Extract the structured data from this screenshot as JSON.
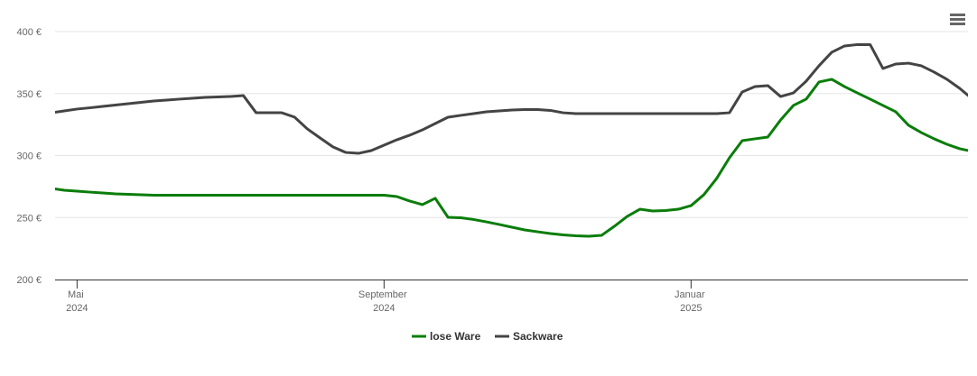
{
  "chart_data": {
    "type": "line",
    "categories": [
      null,
      null,
      "Mai 2024",
      null,
      null,
      null,
      null,
      null,
      null,
      null,
      null,
      null,
      null,
      null,
      null,
      null,
      null,
      null,
      null,
      null,
      null,
      null,
      null,
      null,
      null,
      null,
      "September 2024",
      null,
      null,
      null,
      null,
      null,
      null,
      null,
      null,
      null,
      null,
      null,
      null,
      null,
      null,
      null,
      null,
      null,
      null,
      null,
      null,
      null,
      null,
      null,
      "Januar 2025",
      null,
      null,
      null,
      null,
      null,
      null,
      null,
      null,
      null,
      null,
      null,
      null,
      null,
      null,
      null,
      null,
      null,
      null,
      null,
      null,
      null,
      null
    ],
    "series": [
      {
        "name": "lose Ware",
        "color": "#0a7d0a",
        "values": [
          273.5,
          272,
          271.3,
          270.5,
          269.8,
          269.1,
          268.7,
          268.4,
          268,
          268,
          268,
          268,
          268,
          268,
          268,
          268,
          268,
          268,
          268,
          268,
          268,
          268,
          268,
          268,
          268,
          268,
          268,
          266.9,
          263.3,
          260.4,
          265.5,
          250.2,
          249.8,
          248.4,
          246.5,
          244.4,
          242.2,
          240,
          238.5,
          237.1,
          236,
          235.3,
          234.9,
          235.6,
          242.9,
          250.9,
          256.7,
          255.3,
          255.6,
          256.7,
          259.6,
          268.4,
          281.5,
          298.2,
          312,
          313.5,
          314.9,
          328.7,
          340.4,
          345.5,
          359.3,
          361.5,
          355.6,
          350.5,
          345.5,
          340.4,
          335.3,
          324.4,
          318.5,
          313.5,
          309.1,
          305.5,
          303.3
        ]
      },
      {
        "name": "Sackware",
        "color": "#444444",
        "values": [
          334.5,
          336,
          337.5,
          338.5,
          339.6,
          340.7,
          341.8,
          342.9,
          344,
          344.7,
          345.5,
          346.2,
          346.9,
          347.3,
          347.6,
          348.4,
          334.5,
          334.5,
          334.5,
          331,
          321.5,
          314.2,
          307,
          302.5,
          301.8,
          304,
          308.4,
          312.7,
          316.4,
          320.7,
          325.8,
          330.9,
          332.4,
          333.8,
          335.3,
          336,
          336.7,
          337.1,
          337.1,
          336.4,
          334.5,
          333.8,
          333.8,
          333.8,
          333.8,
          333.8,
          333.8,
          333.8,
          333.8,
          333.8,
          333.8,
          333.8,
          333.8,
          334.5,
          351.3,
          355.6,
          356.4,
          347.6,
          350.5,
          360,
          372.4,
          383.3,
          388.4,
          389.5,
          389.5,
          370.2,
          373.8,
          374.5,
          372.4,
          367.3,
          361.5,
          354.2,
          345.5
        ]
      }
    ],
    "ylim": [
      200,
      400
    ],
    "yticks": [
      {
        "value": 200,
        "label": "200 €"
      },
      {
        "value": 250,
        "label": "250 €"
      },
      {
        "value": 300,
        "label": "300 €"
      },
      {
        "value": 350,
        "label": "350 €"
      },
      {
        "value": 400,
        "label": "400 €"
      }
    ],
    "grid": true,
    "legend": "bottom"
  }
}
